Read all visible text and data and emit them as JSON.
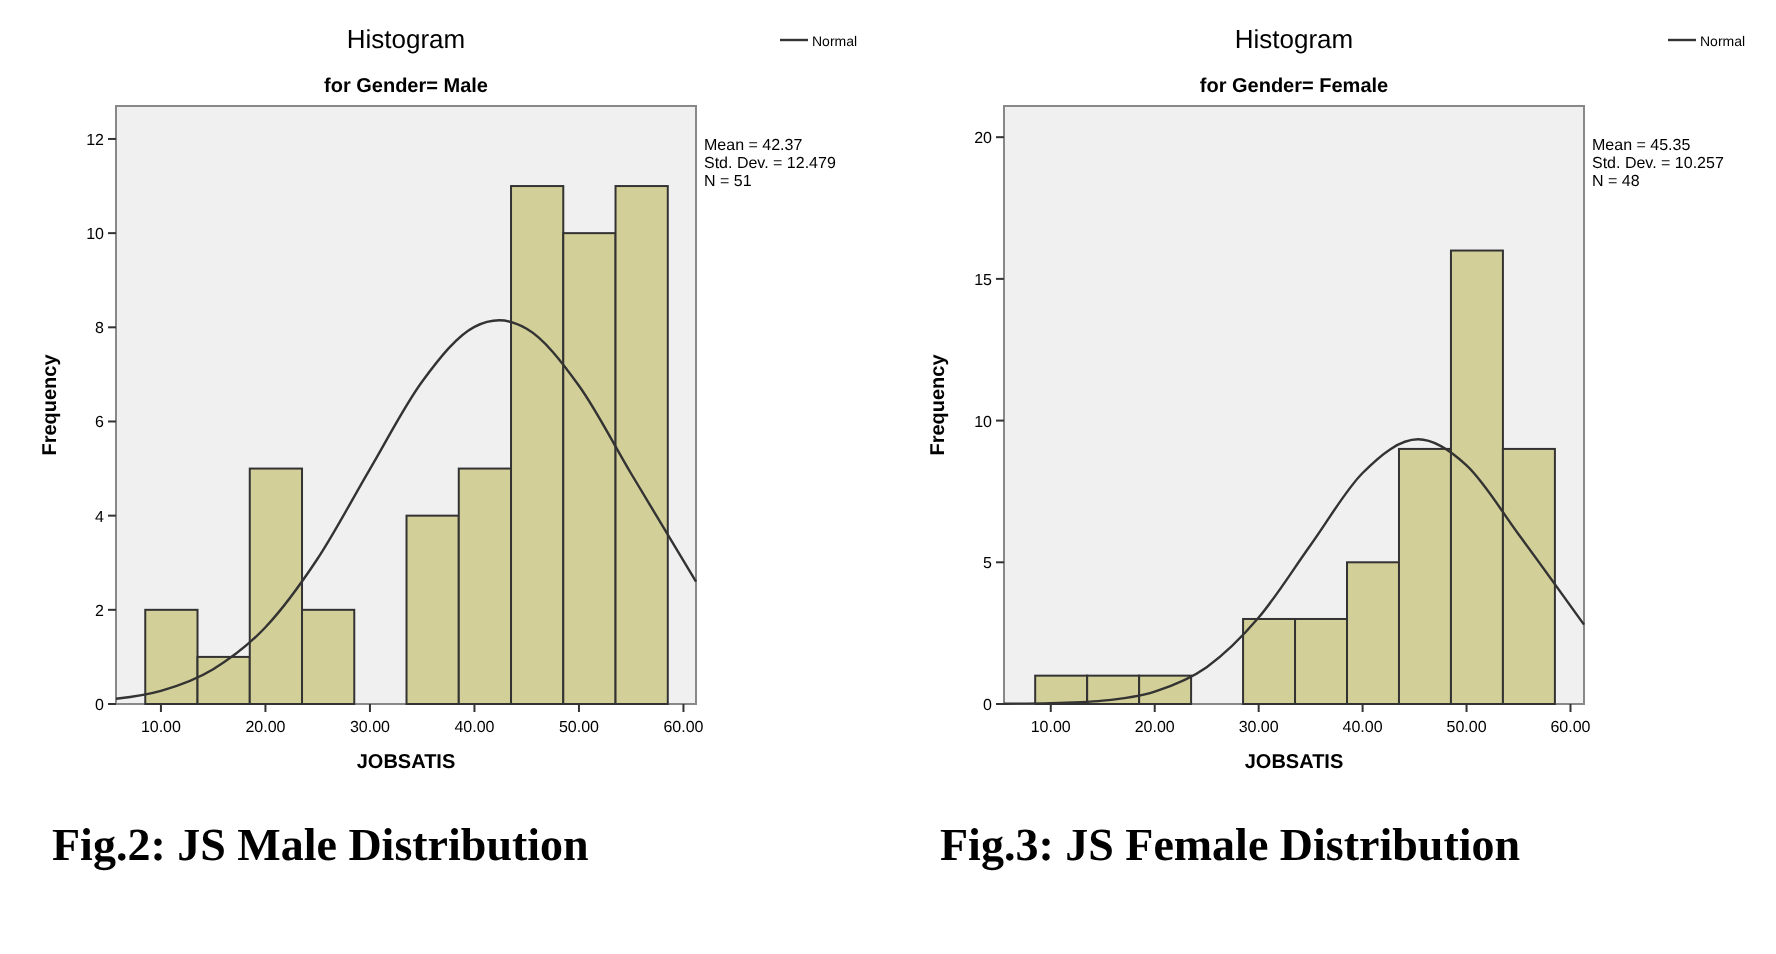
{
  "chart_data": [
    {
      "type": "histogram",
      "title": "Histogram",
      "subtitle": "for Gender= Male",
      "xlabel": "JOBSATIS",
      "ylabel": "Frequency",
      "bins": [
        8.5,
        13.5,
        18.5,
        23.5,
        28.5,
        33.5,
        38.5,
        43.5,
        48.5,
        53.5,
        58.5
      ],
      "values": [
        2,
        1,
        5,
        2,
        0,
        4,
        5,
        11,
        10,
        11
      ],
      "color": "#d3cf98",
      "xlim": [
        5.7,
        61.2
      ],
      "ylim": [
        0,
        12.7
      ],
      "xticks": [
        {
          "value": 10,
          "label": "10.00"
        },
        {
          "value": 20,
          "label": "20.00"
        },
        {
          "value": 30,
          "label": "30.00"
        },
        {
          "value": 40,
          "label": "40.00"
        },
        {
          "value": 50,
          "label": "50.00"
        },
        {
          "value": 60,
          "label": "60.00"
        }
      ],
      "yticks": [
        0,
        2,
        4,
        6,
        8,
        10,
        12
      ],
      "grid": false,
      "legend": "top right",
      "series": [
        {
          "type": "line",
          "name": "Normal",
          "color": "#333333",
          "x": [
            5.7,
            10,
            15,
            20,
            25,
            30,
            35,
            40,
            42.37,
            45,
            50,
            55,
            61.2
          ],
          "values": [
            0.11,
            0.28,
            0.74,
            1.63,
            3.09,
            4.99,
            6.85,
            8.01,
            8.15,
            7.97,
            6.76,
            4.89,
            2.6
          ]
        }
      ],
      "annotations": [
        "Mean = 42.37",
        "Std. Dev. = 12.479",
        "N = 51",
        "Fig.2: JS Male Distribution"
      ]
    },
    {
      "type": "histogram",
      "title": "Histogram",
      "subtitle": "for Gender= Female",
      "xlabel": "JOBSATIS",
      "ylabel": "Frequency",
      "bins": [
        8.5,
        13.5,
        18.5,
        23.5,
        28.5,
        33.5,
        38.5,
        43.5,
        48.5,
        53.5,
        58.5
      ],
      "values": [
        1,
        1,
        1,
        0,
        3,
        3,
        5,
        9,
        16,
        9
      ],
      "color": "#d3cf98",
      "xlim": [
        5.5,
        61.3
      ],
      "ylim": [
        0,
        21.1
      ],
      "xticks": [
        {
          "value": 10,
          "label": "10.00"
        },
        {
          "value": 20,
          "label": "20.00"
        },
        {
          "value": 30,
          "label": "30.00"
        },
        {
          "value": 40,
          "label": "40.00"
        },
        {
          "value": 50,
          "label": "50.00"
        },
        {
          "value": 60,
          "label": "60.00"
        }
      ],
      "yticks": [
        0,
        5,
        10,
        15,
        20
      ],
      "grid": false,
      "legend": "top right",
      "series": [
        {
          "type": "line",
          "name": "Normal",
          "color": "#333333",
          "x": [
            5.5,
            10,
            15,
            20,
            25,
            30,
            35,
            40,
            45.35,
            50,
            55,
            61.3
          ],
          "values": [
            0.01,
            0.03,
            0.12,
            0.44,
            1.3,
            3.05,
            5.61,
            8.15,
            9.34,
            8.42,
            5.99,
            2.8
          ]
        }
      ],
      "annotations": [
        "Mean = 45.35",
        "Std. Dev. = 10.257",
        "N = 48",
        "Fig.3:  JS Female Distribution"
      ]
    }
  ]
}
